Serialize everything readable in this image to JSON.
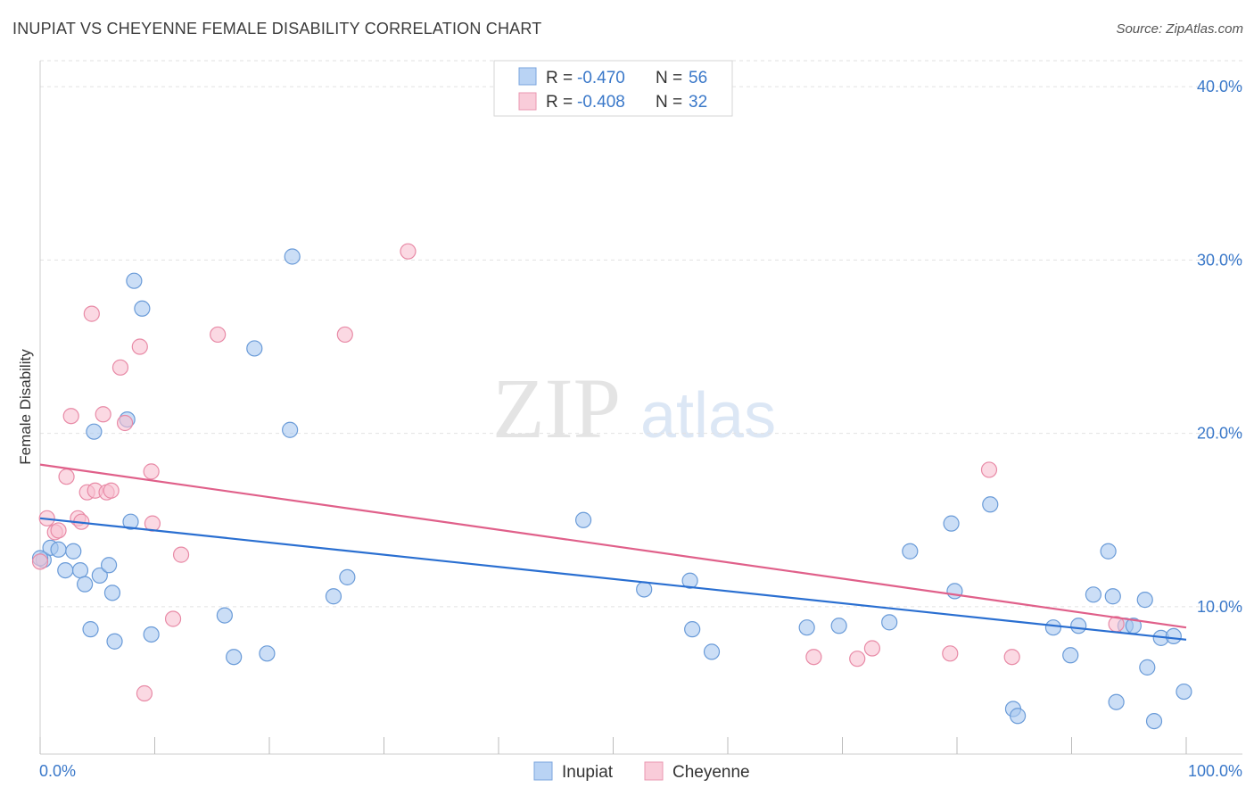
{
  "title": "INUPIAT VS CHEYENNE FEMALE DISABILITY CORRELATION CHART",
  "source": "Source: ZipAtlas.com",
  "watermark": {
    "zip": "ZIP",
    "atlas": "atlas"
  },
  "legend_top": {
    "r_label": "R =",
    "n_label": "N =",
    "rows": [
      {
        "r": "-0.470",
        "n": "56"
      },
      {
        "r": "-0.408",
        "n": "32"
      }
    ]
  },
  "chart_data": {
    "type": "scatter",
    "title": "INUPIAT VS CHEYENNE FEMALE DISABILITY CORRELATION CHART",
    "xlabel": "",
    "ylabel": "Female Disability",
    "xlim": [
      0,
      100
    ],
    "ylim": [
      1.5,
      41.5
    ],
    "x_tick_labels": [
      "0.0%",
      "100.0%"
    ],
    "y_ticks": [
      10,
      20,
      30,
      40
    ],
    "y_tick_labels": [
      "10.0%",
      "20.0%",
      "30.0%",
      "40.0%"
    ],
    "grid": true,
    "legend_position": "top-center",
    "series": [
      {
        "name": "Inupiat",
        "color": "#a8c8f0",
        "stroke": "#6a9bd8",
        "trend_color": "#2a6fd1",
        "trend": [
          [
            0,
            15.1
          ],
          [
            100,
            8.1
          ]
        ],
        "points": [
          [
            0.3,
            12.7
          ],
          [
            0.9,
            13.4
          ],
          [
            1.6,
            13.3
          ],
          [
            2.2,
            12.1
          ],
          [
            2.9,
            13.2
          ],
          [
            3.5,
            12.1
          ],
          [
            3.9,
            11.3
          ],
          [
            4.4,
            8.7
          ],
          [
            4.7,
            20.1
          ],
          [
            5.2,
            11.8
          ],
          [
            6.0,
            12.4
          ],
          [
            6.3,
            10.8
          ],
          [
            6.5,
            8.0
          ],
          [
            7.6,
            20.8
          ],
          [
            7.9,
            14.9
          ],
          [
            8.2,
            28.8
          ],
          [
            8.9,
            27.2
          ],
          [
            9.7,
            8.4
          ],
          [
            16.1,
            9.5
          ],
          [
            16.9,
            7.1
          ],
          [
            18.7,
            24.9
          ],
          [
            19.8,
            7.3
          ],
          [
            21.8,
            20.2
          ],
          [
            22.0,
            30.2
          ],
          [
            25.6,
            10.6
          ],
          [
            26.8,
            11.7
          ],
          [
            47.4,
            15.0
          ],
          [
            52.7,
            11.0
          ],
          [
            56.7,
            11.5
          ],
          [
            56.9,
            8.7
          ],
          [
            58.6,
            7.4
          ],
          [
            66.9,
            8.8
          ],
          [
            69.7,
            8.9
          ],
          [
            74.1,
            9.1
          ],
          [
            75.9,
            13.2
          ],
          [
            79.5,
            14.8
          ],
          [
            79.8,
            10.9
          ],
          [
            82.9,
            15.9
          ],
          [
            84.9,
            4.1
          ],
          [
            85.3,
            3.7
          ],
          [
            88.4,
            8.8
          ],
          [
            89.9,
            7.2
          ],
          [
            90.6,
            8.9
          ],
          [
            91.9,
            10.7
          ],
          [
            93.2,
            13.2
          ],
          [
            93.6,
            10.6
          ],
          [
            93.9,
            4.5
          ],
          [
            94.7,
            8.9
          ],
          [
            95.4,
            8.9
          ],
          [
            96.4,
            10.4
          ],
          [
            96.6,
            6.5
          ],
          [
            97.2,
            3.4
          ],
          [
            97.8,
            8.2
          ],
          [
            98.9,
            8.3
          ],
          [
            99.8,
            5.1
          ],
          [
            0.0,
            12.8
          ]
        ]
      },
      {
        "name": "Cheyenne",
        "color": "#f8c0d0",
        "stroke": "#e88aa6",
        "trend_color": "#e0608a",
        "trend": [
          [
            0,
            18.2
          ],
          [
            100,
            8.8
          ]
        ],
        "points": [
          [
            0.0,
            12.6
          ],
          [
            0.6,
            15.1
          ],
          [
            1.3,
            14.3
          ],
          [
            1.6,
            14.4
          ],
          [
            2.3,
            17.5
          ],
          [
            2.7,
            21.0
          ],
          [
            3.3,
            15.1
          ],
          [
            3.6,
            14.9
          ],
          [
            4.1,
            16.6
          ],
          [
            4.5,
            26.9
          ],
          [
            4.8,
            16.7
          ],
          [
            5.5,
            21.1
          ],
          [
            5.8,
            16.6
          ],
          [
            6.2,
            16.7
          ],
          [
            7.0,
            23.8
          ],
          [
            7.4,
            20.6
          ],
          [
            8.7,
            25.0
          ],
          [
            9.1,
            5.0
          ],
          [
            9.7,
            17.8
          ],
          [
            9.8,
            14.8
          ],
          [
            11.6,
            9.3
          ],
          [
            12.3,
            13.0
          ],
          [
            15.5,
            25.7
          ],
          [
            26.6,
            25.7
          ],
          [
            32.1,
            30.5
          ],
          [
            67.5,
            7.1
          ],
          [
            71.3,
            7.0
          ],
          [
            72.6,
            7.6
          ],
          [
            79.4,
            7.3
          ],
          [
            82.8,
            17.9
          ],
          [
            84.8,
            7.1
          ],
          [
            93.9,
            9.0
          ]
        ]
      }
    ]
  },
  "legend_bottom": [
    {
      "label": "Inupiat"
    },
    {
      "label": "Cheyenne"
    }
  ]
}
